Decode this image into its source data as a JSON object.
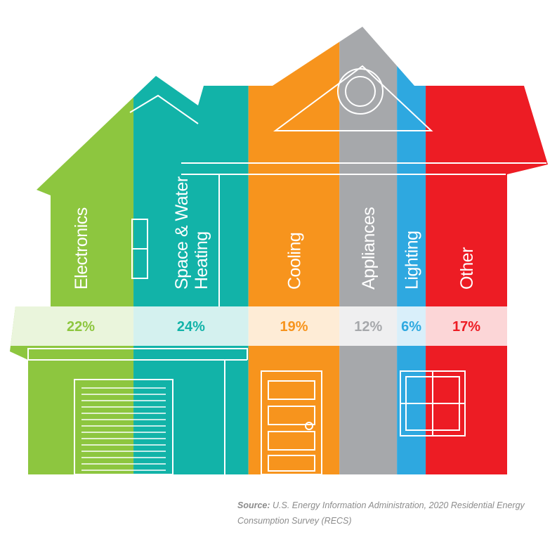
{
  "chart_data": {
    "type": "bar",
    "categories": [
      "Electronics",
      "Space & Water Heating",
      "Cooling",
      "Appliances",
      "Lighting",
      "Other"
    ],
    "category_lines": [
      [
        "Electronics"
      ],
      [
        "Space & Water",
        "Heating"
      ],
      [
        "Cooling"
      ],
      [
        "Appliances"
      ],
      [
        "Lighting"
      ],
      [
        "Other"
      ]
    ],
    "values": [
      22,
      24,
      19,
      12,
      6,
      17
    ],
    "value_labels": [
      "22%",
      "24%",
      "19%",
      "12%",
      "6%",
      "17%"
    ],
    "colors": [
      "#8dc63f",
      "#12b3a8",
      "#f7941d",
      "#a6a8ab",
      "#2ea8e0",
      "#ed1c24"
    ],
    "label_colors": [
      "#8dc63f",
      "#12b3a8",
      "#f7941d",
      "#a6a8ab",
      "#2ea8e0",
      "#ed1c24"
    ]
  },
  "source": {
    "label": "Source:",
    "text": " U.S. Energy Information Administration, 2020 Residential Energy Consumption Survey (RECS)"
  }
}
